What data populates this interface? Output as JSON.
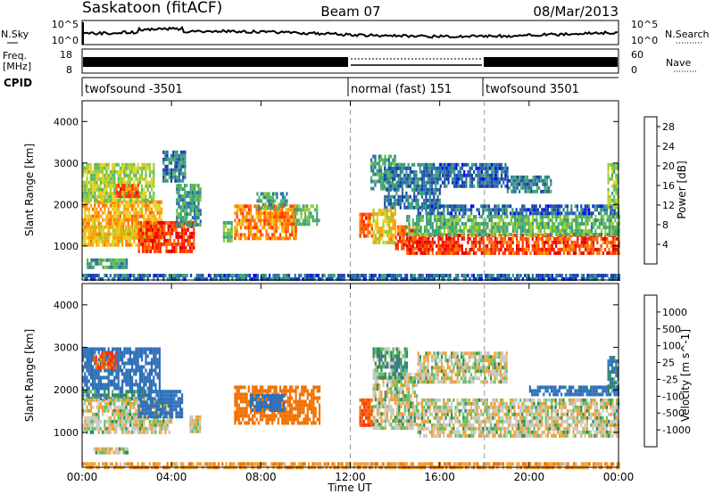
{
  "header": {
    "station": "Saskatoon (fitACF)",
    "beam": "Beam 07",
    "date": "08/Mar/2013"
  },
  "noise_panel": {
    "left_label": "N.Sky",
    "right_label": "N.Search",
    "left_top_tick": "10^5",
    "left_bottom_tick": "10^0",
    "right_top_tick": "10^5",
    "right_bottom_tick": "10^0"
  },
  "freq_panel": {
    "left_label_1": "Freq.",
    "left_label_2": "[MHz]",
    "right_label": "Nave",
    "left_top_tick": "18",
    "left_bottom_tick": "8",
    "right_top_tick": "60",
    "right_bottom_tick": "0"
  },
  "cpid_panel": {
    "label": "CPID",
    "segments": [
      {
        "start_hour": 0,
        "end_hour": 12,
        "name": "twofsound -3501"
      },
      {
        "start_hour": 12,
        "end_hour": 18,
        "name": "normal (fast) 151"
      },
      {
        "start_hour": 18,
        "end_hour": 24,
        "name": "twofsound 3501"
      }
    ]
  },
  "x_axis": {
    "label": "Time UT",
    "ticks": [
      "00:00",
      "04:00",
      "08:00",
      "12:00",
      "16:00",
      "20:00",
      "00:00"
    ],
    "range_hours": [
      0,
      24
    ]
  },
  "chart_data": [
    {
      "type": "heatmap",
      "title": "",
      "xlabel": "",
      "ylabel": "Slant Range [km]",
      "xlim": [
        0,
        24
      ],
      "ylim": [
        180,
        4500
      ],
      "yticks": [
        "1000",
        "2000",
        "3000",
        "4000"
      ],
      "colorbar": {
        "label": "Power [dB]",
        "ticks": [
          "4",
          "8",
          "12",
          "16",
          "20",
          "24",
          "28"
        ],
        "tick_values": [
          4,
          8,
          12,
          16,
          20,
          24,
          28
        ],
        "range": [
          0,
          30
        ],
        "colors": [
          "#0000ff",
          "#1a3fb0",
          "#2a6fa0",
          "#3a9f7a",
          "#5db85a",
          "#9acd32",
          "#e8d020",
          "#ff9f00",
          "#ff6a00",
          "#ff3000",
          "#e80000"
        ]
      },
      "regions": [
        {
          "t0": 0.0,
          "t1": 3.6,
          "r0": 1000,
          "r1": 2100,
          "v": 20
        },
        {
          "t0": 0.0,
          "t1": 3.2,
          "r0": 2100,
          "r1": 3000,
          "v": 15
        },
        {
          "t0": 1.5,
          "t1": 2.5,
          "r0": 2200,
          "r1": 2500,
          "v": 24
        },
        {
          "t0": 0.3,
          "t1": 3.0,
          "r0": 1200,
          "r1": 1500,
          "v": 18
        },
        {
          "t0": 2.5,
          "t1": 5.0,
          "r0": 900,
          "r1": 1600,
          "v": 26
        },
        {
          "t0": 4.2,
          "t1": 5.3,
          "r0": 1500,
          "r1": 2500,
          "v": 10
        },
        {
          "t0": 0.2,
          "t1": 2.0,
          "r0": 500,
          "r1": 700,
          "v": 10
        },
        {
          "t0": 3.6,
          "t1": 4.6,
          "r0": 2600,
          "r1": 3300,
          "v": 8
        },
        {
          "t0": 6.3,
          "t1": 6.7,
          "r0": 1100,
          "r1": 1600,
          "v": 12
        },
        {
          "t0": 6.8,
          "t1": 9.6,
          "r0": 1200,
          "r1": 2000,
          "v": 22
        },
        {
          "t0": 7.8,
          "t1": 9.2,
          "r0": 1900,
          "r1": 2300,
          "v": 10
        },
        {
          "t0": 9.5,
          "t1": 10.6,
          "r0": 1500,
          "r1": 2000,
          "v": 12
        },
        {
          "t0": 12.4,
          "t1": 13.0,
          "r0": 1200,
          "r1": 1800,
          "v": 24
        },
        {
          "t0": 12.9,
          "t1": 14.0,
          "r0": 2400,
          "r1": 3200,
          "v": 10
        },
        {
          "t0": 13.5,
          "t1": 16.0,
          "r0": 1900,
          "r1": 3000,
          "v": 7
        },
        {
          "t0": 16.0,
          "t1": 19.0,
          "r0": 2400,
          "r1": 3000,
          "v": 6
        },
        {
          "t0": 13.0,
          "t1": 14.0,
          "r0": 1100,
          "r1": 1900,
          "v": 18
        },
        {
          "t0": 14.0,
          "t1": 15.0,
          "r0": 900,
          "r1": 1500,
          "v": 24
        },
        {
          "t0": 14.5,
          "t1": 18.0,
          "r0": 850,
          "r1": 1300,
          "v": 27
        },
        {
          "t0": 18.0,
          "t1": 24.0,
          "r0": 850,
          "r1": 1300,
          "v": 25
        },
        {
          "t0": 14.5,
          "t1": 24.0,
          "r0": 1300,
          "r1": 1750,
          "v": 12
        },
        {
          "t0": 15.0,
          "t1": 24.0,
          "r0": 1750,
          "r1": 2000,
          "v": 6
        },
        {
          "t0": 19.0,
          "t1": 21.0,
          "r0": 2300,
          "r1": 2700,
          "v": 8
        },
        {
          "t0": 23.5,
          "t1": 24.0,
          "r0": 1900,
          "r1": 3000,
          "v": 14
        },
        {
          "t0": 0.0,
          "t1": 24.0,
          "r0": 180,
          "r1": 330,
          "v": 6
        }
      ]
    },
    {
      "type": "heatmap",
      "title": "",
      "xlabel": "Time UT",
      "ylabel": "Slant Range [km]",
      "xlim": [
        0,
        24
      ],
      "ylim": [
        180,
        4500
      ],
      "yticks": [
        "1000",
        "2000",
        "3000",
        "4000"
      ],
      "colorbar": {
        "label": "Velocity [m s^-1]",
        "ticks": [
          "1000",
          "500",
          "100",
          "25",
          "-25",
          "-100",
          "-500",
          "-1000"
        ],
        "tick_values": [
          1000,
          500,
          100,
          25,
          -25,
          -100,
          -500,
          -1000
        ],
        "colors": [
          "#1f3ca8",
          "#2f6fb8",
          "#2f8a55",
          "#5fc060",
          "#c8c8c0",
          "#f0a030",
          "#f07000",
          "#ff3010",
          "#e80000"
        ]
      },
      "regions": [
        {
          "t0": 0.0,
          "t1": 3.5,
          "r0": 2000,
          "r1": 3000,
          "v": 200
        },
        {
          "t0": 0.5,
          "t1": 1.5,
          "r0": 2500,
          "r1": 2900,
          "v": -300
        },
        {
          "t0": 0.0,
          "t1": 3.0,
          "r0": 1800,
          "r1": 2000,
          "v": 80
        },
        {
          "t0": 0.0,
          "t1": 4.0,
          "r0": 1000,
          "r1": 1800,
          "v": 0
        },
        {
          "t0": 2.5,
          "t1": 4.5,
          "r0": 1400,
          "r1": 2000,
          "v": 300
        },
        {
          "t0": 0.5,
          "t1": 2.0,
          "r0": 500,
          "r1": 650,
          "v": 0
        },
        {
          "t0": 4.8,
          "t1": 5.3,
          "r0": 1000,
          "r1": 1400,
          "v": 0
        },
        {
          "t0": 6.8,
          "t1": 10.6,
          "r0": 1200,
          "r1": 2100,
          "v": -200
        },
        {
          "t0": 7.5,
          "t1": 9.0,
          "r0": 1500,
          "r1": 1900,
          "v": 400
        },
        {
          "t0": 12.4,
          "t1": 13.0,
          "r0": 1200,
          "r1": 1800,
          "v": -300
        },
        {
          "t0": 13.0,
          "t1": 15.0,
          "r0": 1100,
          "r1": 2400,
          "v": 0
        },
        {
          "t0": 13.0,
          "t1": 14.5,
          "r0": 2300,
          "r1": 3000,
          "v": 50
        },
        {
          "t0": 15.0,
          "t1": 24.0,
          "r0": 900,
          "r1": 1800,
          "v": 0
        },
        {
          "t0": 15.0,
          "t1": 19.0,
          "r0": 2200,
          "r1": 2900,
          "v": 0
        },
        {
          "t0": 20.0,
          "t1": 24.0,
          "r0": 1900,
          "r1": 2100,
          "v": 150
        },
        {
          "t0": 23.5,
          "t1": 24.0,
          "r0": 2000,
          "r1": 2800,
          "v": 100
        },
        {
          "t0": 0.0,
          "t1": 24.0,
          "r0": 180,
          "r1": 300,
          "v": -80
        }
      ]
    }
  ]
}
